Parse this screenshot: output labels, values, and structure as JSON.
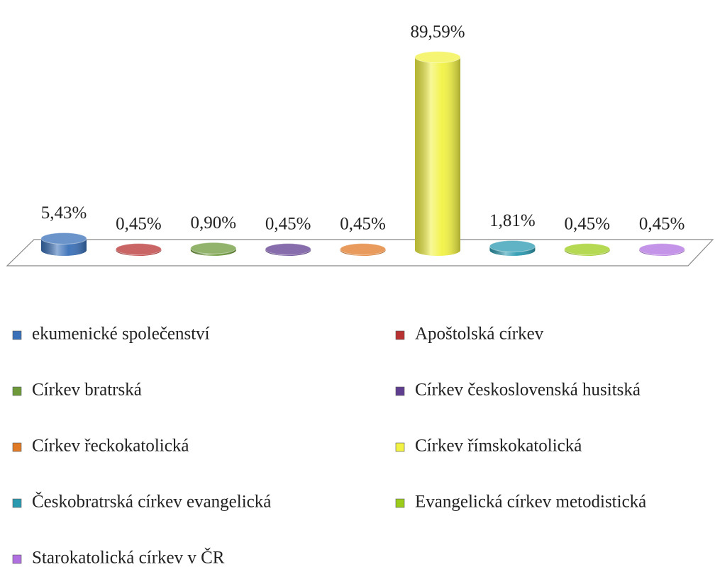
{
  "chart_data": {
    "type": "bar",
    "series": [
      {
        "name": "ekumenické společenství",
        "color": "#3a70b8",
        "values": [
          5.43
        ],
        "value_labels": [
          "5,43%"
        ]
      },
      {
        "name": "Apoštolská církev",
        "color": "#b83232",
        "values": [
          0.45
        ],
        "value_labels": [
          "0,45%"
        ]
      },
      {
        "name": "Církev bratrská",
        "color": "#6e9a3a",
        "values": [
          0.9
        ],
        "value_labels": [
          "0,90%"
        ]
      },
      {
        "name": "Církev československá husitská",
        "color": "#5f3d8f",
        "values": [
          0.45
        ],
        "value_labels": [
          "0,45%"
        ]
      },
      {
        "name": "Církev řeckokatolická",
        "color": "#e07a26",
        "values": [
          0.45
        ],
        "value_labels": [
          "0,45%"
        ]
      },
      {
        "name": "Církev římskokatolická",
        "color": "#f2f244",
        "values": [
          89.59
        ],
        "value_labels": [
          "89,59%"
        ]
      },
      {
        "name": "Českobratrská církev evangelická",
        "color": "#2a9ab0",
        "values": [
          1.81
        ],
        "value_labels": [
          "1,81%"
        ]
      },
      {
        "name": "Evangelická církev metodistická",
        "color": "#9ccc1a",
        "values": [
          0.45
        ],
        "value_labels": [
          "0,45%"
        ]
      },
      {
        "name": "Starokatolická církev v ČR",
        "color": "#b070e0",
        "values": [
          0.45
        ],
        "value_labels": [
          "0,45%"
        ]
      }
    ],
    "legend": "bottom"
  }
}
